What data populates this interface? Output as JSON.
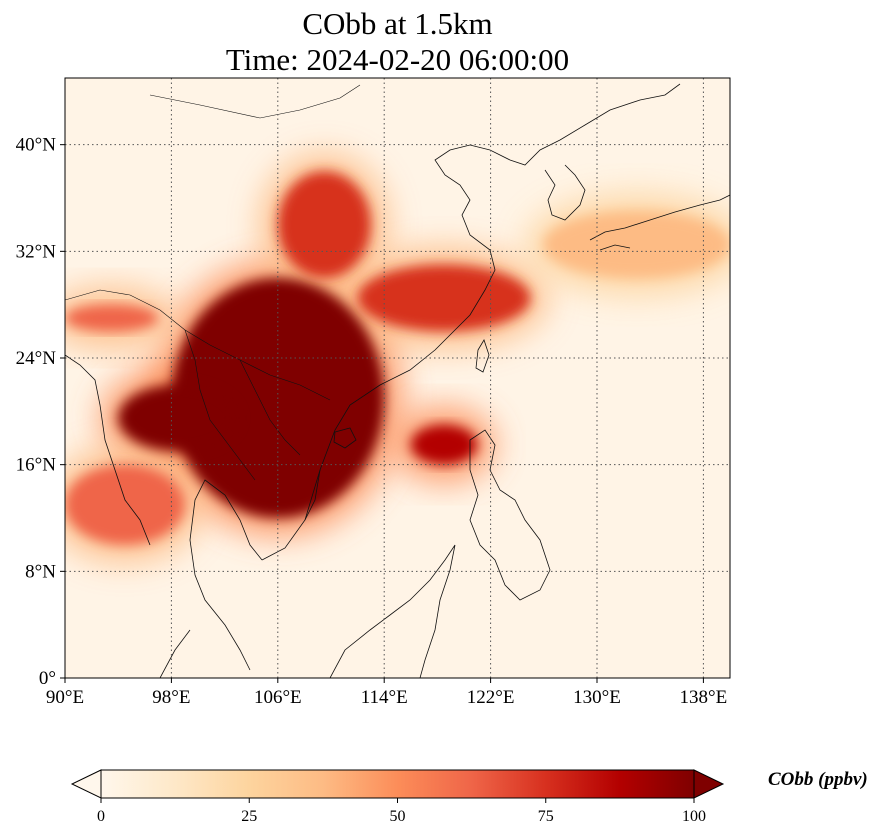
{
  "title_line1": "CObb at 1.5km",
  "title_line2": "Time: 2024-02-20 06:00:00",
  "map": {
    "type": "heatmap",
    "projection": "PlateCarree",
    "lon_range": [
      90,
      140
    ],
    "lat_range": [
      0,
      45
    ],
    "lon_ticks": [
      {
        "value": 90,
        "label": "90°E"
      },
      {
        "value": 98,
        "label": "98°E"
      },
      {
        "value": 106,
        "label": "106°E"
      },
      {
        "value": 114,
        "label": "114°E"
      },
      {
        "value": 122,
        "label": "122°E"
      },
      {
        "value": 130,
        "label": "130°E"
      },
      {
        "value": 138,
        "label": "138°E"
      }
    ],
    "lat_ticks": [
      {
        "value": 0,
        "label": "0°"
      },
      {
        "value": 8,
        "label": "8°N"
      },
      {
        "value": 16,
        "label": "16°N"
      },
      {
        "value": 24,
        "label": "24°N"
      },
      {
        "value": 32,
        "label": "32°N"
      },
      {
        "value": 40,
        "label": "40°N"
      }
    ],
    "gridlines": "dotted",
    "plumes_ppbv": [
      {
        "region": "Indochina / South China core",
        "lon_range": [
          98,
          114
        ],
        "lat_range": [
          12,
          30
        ],
        "level": 100
      },
      {
        "region": "Northern extension (Sichuan–Shaanxi)",
        "lon_range": [
          106,
          113
        ],
        "lat_range": [
          30,
          38
        ],
        "level": 70
      },
      {
        "region": "Yangtze corridor to East China Sea",
        "lon_range": [
          112,
          125
        ],
        "lat_range": [
          26,
          31
        ],
        "level": 75
      },
      {
        "region": "Northern Thailand / Myanmar",
        "lon_range": [
          94,
          103
        ],
        "lat_range": [
          17,
          22
        ],
        "level": 100
      },
      {
        "region": "Luzon Strait",
        "lon_range": [
          116,
          121
        ],
        "lat_range": [
          16,
          19
        ],
        "level": 90
      },
      {
        "region": "Bay of Bengal band",
        "lon_range": [
          90,
          99
        ],
        "lat_range": [
          10,
          16
        ],
        "level": 60
      },
      {
        "region": "Northeast India band",
        "lon_range": [
          90,
          97
        ],
        "lat_range": [
          26,
          28
        ],
        "level": 60
      },
      {
        "region": "South of Japan band",
        "lon_range": [
          126,
          140
        ],
        "lat_range": [
          30,
          35
        ],
        "level": 35
      }
    ]
  },
  "colorbar": {
    "title": "CObb (ppbv)",
    "min": 0,
    "max": 100,
    "extend": "both",
    "colormap": "OrRd",
    "ticks": [
      {
        "value": 0,
        "label": "0"
      },
      {
        "value": 25,
        "label": "25"
      },
      {
        "value": 50,
        "label": "50"
      },
      {
        "value": 75,
        "label": "75"
      },
      {
        "value": 100,
        "label": "100"
      }
    ],
    "colors": [
      "#fff7ec",
      "#fee8c8",
      "#fdd49e",
      "#fdbb84",
      "#fc8d59",
      "#ef6548",
      "#d7301f",
      "#b30000",
      "#7f0000"
    ]
  }
}
